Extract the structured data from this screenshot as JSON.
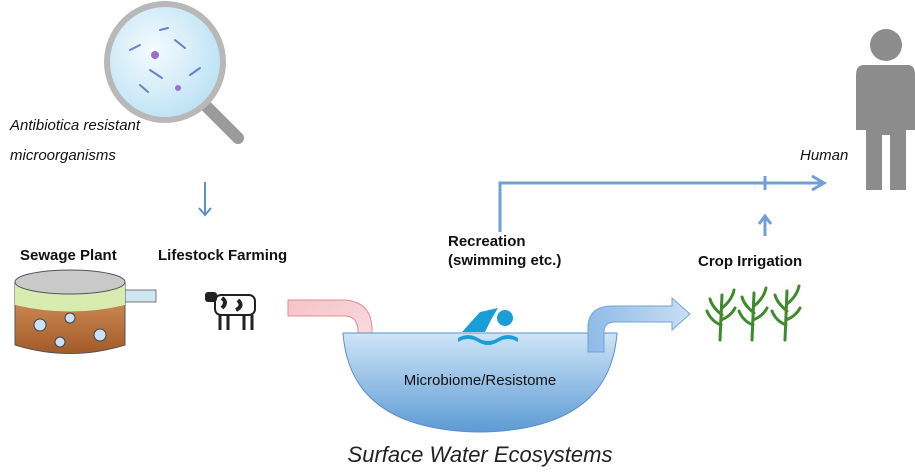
{
  "source": {
    "lines": [
      "Antibiotica resistant",
      "microorganisms"
    ]
  },
  "sewage": {
    "label": "Sewage Plant"
  },
  "farming": {
    "label": "Lifestock Farming"
  },
  "recreation": {
    "lines": [
      "Recreation",
      "(swimming etc.)"
    ]
  },
  "irrigation": {
    "label": "Crop Irrigation"
  },
  "human": {
    "label": "Human"
  },
  "water": {
    "label": "Microbiome/Resistome",
    "caption": "Surface Water Ecosystems"
  }
}
